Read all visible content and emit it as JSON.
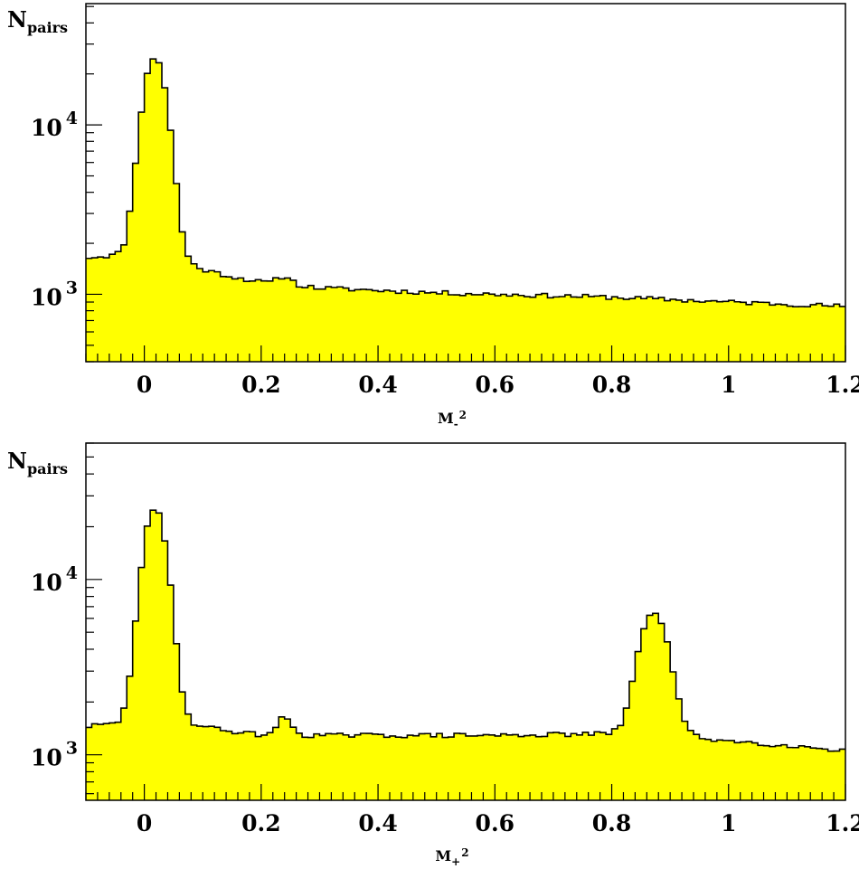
{
  "chart_data": [
    {
      "type": "histogram",
      "ylabel": {
        "main": "N",
        "sub": "pairs"
      },
      "xlabel": {
        "main": "M",
        "sub": "-",
        "sup": "2"
      },
      "xlim": [
        -0.1,
        1.2
      ],
      "ylog": true,
      "ylim": [
        400,
        52000
      ],
      "xticks": [
        {
          "value": 0,
          "label": "0"
        },
        {
          "value": 0.2,
          "label": "0.2"
        },
        {
          "value": 0.4,
          "label": "0.4"
        },
        {
          "value": 0.6,
          "label": "0.6"
        },
        {
          "value": 0.8,
          "label": "0.8"
        },
        {
          "value": 1,
          "label": "1"
        },
        {
          "value": 1.2,
          "label": "1.2"
        }
      ],
      "yticks": [
        {
          "value": 1000,
          "base": "10",
          "exp": "3"
        },
        {
          "value": 10000,
          "base": "10",
          "exp": "4"
        }
      ],
      "fill_color": "#ffff00",
      "line_color": "#000000",
      "peaks": [
        {
          "mu": 0.018,
          "sigma": 0.018,
          "amp": 23500
        },
        {
          "mu": 0.24,
          "sigma": 0.012,
          "amp": 130
        }
      ],
      "background": {
        "x_points": [
          -0.1,
          -0.05,
          0,
          0.05,
          0.1,
          0.15,
          0.2,
          0.3,
          0.5,
          0.8,
          1.0,
          1.2
        ],
        "y_points": [
          1650,
          1700,
          1700,
          1650,
          1400,
          1270,
          1180,
          1090,
          1020,
          960,
          900,
          850
        ]
      }
    },
    {
      "type": "histogram",
      "ylabel": {
        "main": "N",
        "sub": "pairs"
      },
      "xlabel": {
        "main": "M",
        "sub": "+",
        "sup": "2"
      },
      "xlim": [
        -0.1,
        1.2
      ],
      "ylog": true,
      "ylim": [
        550,
        60000
      ],
      "xticks": [
        {
          "value": 0,
          "label": "0"
        },
        {
          "value": 0.2,
          "label": "0.2"
        },
        {
          "value": 0.4,
          "label": "0.4"
        },
        {
          "value": 0.6,
          "label": "0.6"
        },
        {
          "value": 0.8,
          "label": "0.8"
        },
        {
          "value": 1,
          "label": "1"
        },
        {
          "value": 1.2,
          "label": "1.2"
        }
      ],
      "yticks": [
        {
          "value": 1000,
          "base": "10",
          "exp": "3"
        },
        {
          "value": 10000,
          "base": "10",
          "exp": "4"
        }
      ],
      "fill_color": "#ffff00",
      "line_color": "#000000",
      "peaks": [
        {
          "mu": 0.018,
          "sigma": 0.018,
          "amp": 23500
        },
        {
          "mu": 0.24,
          "sigma": 0.012,
          "amp": 330
        },
        {
          "mu": 0.872,
          "sigma": 0.022,
          "amp": 5300
        }
      ],
      "background": {
        "x_points": [
          -0.1,
          -0.05,
          0,
          0.05,
          0.1,
          0.15,
          0.2,
          0.3,
          0.5,
          0.6,
          0.75,
          0.8,
          0.95,
          1.0,
          1.2
        ],
        "y_points": [
          1450,
          1500,
          1500,
          1600,
          1450,
          1360,
          1300,
          1290,
          1290,
          1290,
          1310,
          1320,
          1250,
          1200,
          1060
        ]
      }
    }
  ]
}
